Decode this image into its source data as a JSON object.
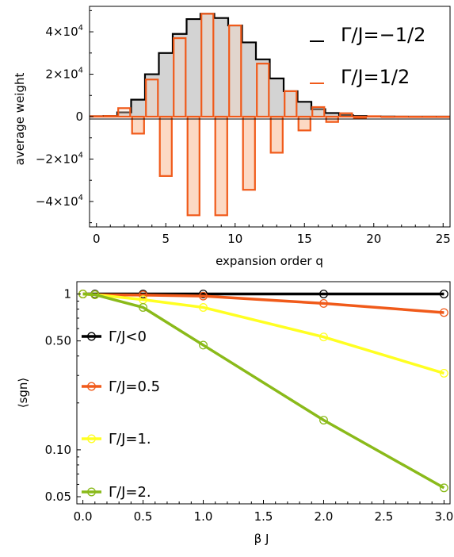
{
  "chart_data": [
    {
      "type": "bar",
      "xlabel": "expansion order q",
      "ylabel": "average weight",
      "xlim": [
        -0.5,
        25.5
      ],
      "ylim": [
        -52000,
        52000
      ],
      "x_ticks": [
        "0",
        "5",
        "10",
        "15",
        "20",
        "25"
      ],
      "y_ticks": [
        {
          "value": 40000,
          "mant": "4",
          "exp": "4"
        },
        {
          "value": 20000,
          "mant": "2",
          "exp": "4"
        },
        {
          "value": 0,
          "mant": "0",
          "exp": ""
        },
        {
          "value": -20000,
          "mant": "−2",
          "exp": "4"
        },
        {
          "value": -40000,
          "mant": "−4",
          "exp": "4"
        }
      ],
      "grid": false,
      "legend_position": "top-right",
      "series": [
        {
          "name": "Γ/J=−1/2",
          "color": "#000000",
          "fill": "#d3d3d3",
          "x": [
            0,
            1,
            2,
            3,
            4,
            5,
            6,
            7,
            8,
            9,
            10,
            11,
            12,
            13,
            14,
            15,
            16,
            17,
            18,
            19,
            20,
            21,
            22,
            23,
            24,
            25
          ],
          "values": [
            200,
            300,
            2000,
            8000,
            20000,
            30000,
            39000,
            46000,
            48500,
            46500,
            43000,
            35000,
            27000,
            18000,
            12000,
            7000,
            3500,
            1700,
            700,
            300,
            100,
            50,
            20,
            10,
            5,
            0
          ]
        },
        {
          "name": "Γ/J=1/2",
          "color": "#f05a1a",
          "fill": "#fcd9c4",
          "x": [
            0,
            1,
            2,
            3,
            4,
            5,
            6,
            7,
            8,
            9,
            10,
            11,
            12,
            13,
            14,
            15,
            16,
            17,
            18,
            19,
            20,
            21,
            22,
            23,
            24,
            25
          ],
          "values": [
            200,
            300,
            4000,
            -8000,
            17500,
            -28000,
            37000,
            -46500,
            48500,
            -46500,
            43000,
            -34500,
            25000,
            -17000,
            12000,
            -6500,
            4500,
            -2500,
            1600,
            -600,
            200,
            -80,
            30,
            -10,
            5,
            0
          ]
        }
      ]
    },
    {
      "type": "line",
      "xlabel": "β J",
      "ylabel": "⟨sgn⟩",
      "xlim": [
        -0.05,
        3.05
      ],
      "ylim": [
        0.045,
        1.2
      ],
      "yscale": "log",
      "x_ticks": [
        "0.0",
        "0.5",
        "1.0",
        "1.5",
        "2.0",
        "2.5",
        "3.0"
      ],
      "y_ticks": [
        {
          "value": 1,
          "label": "1"
        },
        {
          "value": 0.5,
          "label": "0.50"
        },
        {
          "value": 0.1,
          "label": "0.10"
        },
        {
          "value": 0.05,
          "label": "0.05"
        }
      ],
      "grid": false,
      "legend_position": "left",
      "series": [
        {
          "name": "Γ/J<0",
          "color": "#000000",
          "x": [
            0,
            0.1,
            0.5,
            1,
            2,
            3
          ],
          "values": [
            1,
            1,
            1,
            1,
            1,
            1
          ]
        },
        {
          "name": "Γ/J=0.5",
          "color": "#f05a1a",
          "x": [
            0,
            0.1,
            0.5,
            1,
            2,
            3
          ],
          "values": [
            1,
            0.99,
            0.985,
            0.97,
            0.87,
            0.76
          ]
        },
        {
          "name": "Γ/J=1.",
          "color": "#ffff22",
          "x": [
            0,
            0.1,
            0.5,
            1,
            2,
            3
          ],
          "values": [
            1,
            0.99,
            0.92,
            0.82,
            0.53,
            0.31
          ]
        },
        {
          "name": "Γ/J=2.",
          "color": "#8aba1a",
          "x": [
            0,
            0.1,
            0.5,
            1,
            2,
            3
          ],
          "values": [
            1,
            0.99,
            0.82,
            0.47,
            0.155,
            0.057
          ]
        }
      ]
    }
  ]
}
